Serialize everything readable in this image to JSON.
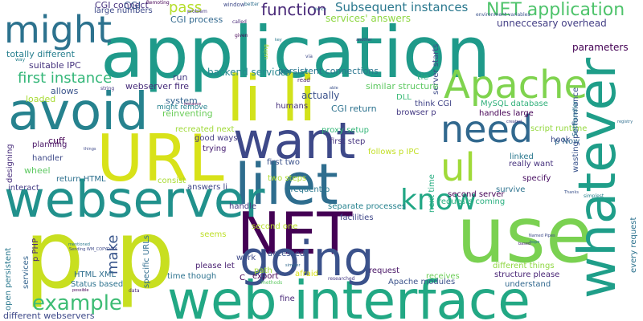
{
  "words": [
    {
      "text": "p p",
      "color": "#c8df20"
    },
    {
      "text": "application",
      "color": "#1f9a8a"
    },
    {
      "text": "web interface",
      "color": "#22a884"
    },
    {
      "text": "use",
      "color": "#7ad151"
    },
    {
      "text": "lilet",
      "color": "#2e6d8e"
    },
    {
      "text": "NET",
      "color": "#440154"
    },
    {
      "text": "going",
      "color": "#3b528b"
    },
    {
      "text": "li li",
      "color": "#d2e21b"
    },
    {
      "text": "avoid",
      "color": "#26828e"
    },
    {
      "text": "URL",
      "color": "#d8e219"
    },
    {
      "text": "want",
      "color": "#3e4989"
    },
    {
      "text": "webserver",
      "color": "#21918c"
    },
    {
      "text": "whatever",
      "color": "#1f9e89"
    },
    {
      "text": "Apache",
      "color": "#7fd34e"
    },
    {
      "text": "need",
      "color": "#31688e"
    },
    {
      "text": "ul",
      "color": "#a0da39"
    },
    {
      "text": "might",
      "color": "#2c728e"
    },
    {
      "text": "know",
      "color": "#22a785"
    },
    {
      "text": "example",
      "color": "#3dbc74"
    },
    {
      "text": "NET application",
      "color": "#4ec36b"
    },
    {
      "text": "function",
      "color": "#482878"
    },
    {
      "text": "Subsequent instances",
      "color": "#2a788e"
    },
    {
      "text": "pass",
      "color": "#b5de2b"
    },
    {
      "text": "first instance",
      "color": "#35b779"
    },
    {
      "text": "backend services",
      "color": "#24868e"
    },
    {
      "text": "make",
      "color": "#39568c"
    },
    {
      "text": "server starts",
      "color": "#3e4a89"
    },
    {
      "text": "parameters",
      "color": "#440154"
    },
    {
      "text": "unneccesary overhead",
      "color": "#433e85"
    },
    {
      "text": "CGI connect",
      "color": "#46327e"
    },
    {
      "text": "CGI process",
      "color": "#31688e"
    },
    {
      "text": "services' answers",
      "color": "#8fd744"
    },
    {
      "text": "totally different",
      "color": "#277f8e"
    },
    {
      "text": "suitable IPC",
      "color": "#46337e"
    },
    {
      "text": "persistent connections",
      "color": "#2a768e"
    },
    {
      "text": "run",
      "color": "#443a83"
    },
    {
      "text": "webserver fire",
      "color": "#472c7a"
    },
    {
      "text": "similar structure",
      "color": "#5ec962"
    },
    {
      "text": "tie",
      "color": "#29af7f"
    },
    {
      "text": "actually",
      "color": "#3b528b"
    },
    {
      "text": "CGI return",
      "color": "#2c728e"
    },
    {
      "text": "system",
      "color": "#32648e"
    },
    {
      "text": "reinventing",
      "color": "#6ccd5a"
    },
    {
      "text": "recreated next",
      "color": "#a0da39"
    },
    {
      "text": "might remove",
      "color": "#26828e"
    },
    {
      "text": "allows",
      "color": "#3a538b"
    },
    {
      "text": "loaded",
      "color": "#a8db34"
    },
    {
      "text": "cuff",
      "color": "#440154"
    },
    {
      "text": "planning",
      "color": "#471365"
    },
    {
      "text": "handler",
      "color": "#3e4a89"
    },
    {
      "text": "wheel",
      "color": "#5ec962"
    },
    {
      "text": "designing",
      "color": "#472d7b"
    },
    {
      "text": "good ways",
      "color": "#443a83"
    },
    {
      "text": "trying",
      "color": "#482173"
    },
    {
      "text": "return HTML",
      "color": "#2d708e"
    },
    {
      "text": "interact",
      "color": "#443b84"
    },
    {
      "text": "consist",
      "color": "#aadc32"
    },
    {
      "text": "answers li",
      "color": "#404688"
    },
    {
      "text": "proxy setup",
      "color": "#35b779"
    },
    {
      "text": "first step",
      "color": "#463480"
    },
    {
      "text": "follows p IPC",
      "color": "#c2df23"
    },
    {
      "text": "first two",
      "color": "#3b528b"
    },
    {
      "text": "two steps",
      "color": "#b0dd2f"
    },
    {
      "text": "frequent p",
      "color": "#2a788e"
    },
    {
      "text": "humans",
      "color": "#46307e"
    },
    {
      "text": "DLL",
      "color": "#3aba76"
    },
    {
      "text": "think CGI",
      "color": "#414487"
    },
    {
      "text": "MySQL database",
      "color": "#30b07a"
    },
    {
      "text": "browser p",
      "color": "#443983"
    },
    {
      "text": "handles large",
      "color": "#440154"
    },
    {
      "text": "script runtime",
      "color": "#95d840"
    },
    {
      "text": "hook",
      "color": "#3e4a89"
    },
    {
      "text": "p Now",
      "color": "#31688e"
    },
    {
      "text": "wasting performance",
      "color": "#3a548c"
    },
    {
      "text": "really want",
      "color": "#46327e"
    },
    {
      "text": "linked",
      "color": "#2a788e"
    },
    {
      "text": "specify",
      "color": "#470e61"
    },
    {
      "text": "survive",
      "color": "#2c728e"
    },
    {
      "text": "requests coming",
      "color": "#29af7f"
    },
    {
      "text": "second server",
      "color": "#440154"
    },
    {
      "text": "next time",
      "color": "#27ad81"
    },
    {
      "text": "separate processes",
      "color": "#26828e"
    },
    {
      "text": "facilities",
      "color": "#3f4788"
    },
    {
      "text": "second one",
      "color": "#b8de29"
    },
    {
      "text": "seems",
      "color": "#bddf26"
    },
    {
      "text": "accessed",
      "color": "#3b528b"
    },
    {
      "text": "work",
      "color": "#3e4a89"
    },
    {
      "text": "handle",
      "color": "#443a83"
    },
    {
      "text": "export",
      "color": "#440154"
    },
    {
      "text": "please let",
      "color": "#481f70"
    },
    {
      "text": "time though",
      "color": "#2c728e"
    },
    {
      "text": "C",
      "color": "#440154"
    },
    {
      "text": "path",
      "color": "#a5db36"
    },
    {
      "text": "afraid",
      "color": "#d8e219"
    },
    {
      "text": "request",
      "color": "#471365"
    },
    {
      "text": "receives",
      "color": "#6ece58"
    },
    {
      "text": "structure please",
      "color": "#482475"
    },
    {
      "text": "different things",
      "color": "#90d743"
    },
    {
      "text": "understand",
      "color": "#31688e"
    },
    {
      "text": "Apache modules",
      "color": "#3b528b"
    },
    {
      "text": "fine",
      "color": "#482878"
    },
    {
      "text": "Status based",
      "color": "#2c728e"
    },
    {
      "text": "HTML XML",
      "color": "#2e6e8e"
    },
    {
      "text": "services",
      "color": "#33638d"
    },
    {
      "text": "p PHP",
      "color": "#482878"
    },
    {
      "text": "specific URLs",
      "color": "#2f6c8e"
    },
    {
      "text": "open persistent",
      "color": "#2a788e"
    },
    {
      "text": "different webservers",
      "color": "#3e4989"
    },
    {
      "text": "every request",
      "color": "#2c728e"
    },
    {
      "text": "large numbers",
      "color": "#3e4a89"
    },
    {
      "text": "CGI",
      "color": "#39568c"
    },
    {
      "text": "Remoting",
      "color": "#440154"
    },
    {
      "text": "window",
      "color": "#3e4a89"
    },
    {
      "text": "better",
      "color": "#2e6e8e"
    },
    {
      "text": "environment variables",
      "color": "#3b528b"
    },
    {
      "text": "called",
      "color": "#482878"
    },
    {
      "text": "problem",
      "color": "#443983"
    },
    {
      "text": "Hence",
      "color": "#31688e"
    },
    {
      "text": "given",
      "color": "#440154"
    },
    {
      "text": "key",
      "color": "#2a788e"
    },
    {
      "text": "another",
      "color": "#46327e"
    },
    {
      "text": "via",
      "color": "#3e4989"
    },
    {
      "text": "using",
      "color": "#b5de2b"
    },
    {
      "text": "way",
      "color": "#26828e"
    },
    {
      "text": "string",
      "color": "#443a83"
    },
    {
      "text": "read",
      "color": "#481f70"
    },
    {
      "text": "able",
      "color": "#3b528b"
    },
    {
      "text": "mentioned",
      "color": "#2a788e"
    },
    {
      "text": "Sending WM_COPYDATA",
      "color": "#3e4989"
    },
    {
      "text": "possible",
      "color": "#440154"
    },
    {
      "text": "data",
      "color": "#482878"
    },
    {
      "text": "methods",
      "color": "#5ec962"
    },
    {
      "text": "simpler",
      "color": "#31688e"
    },
    {
      "text": "researched",
      "color": "#443983"
    },
    {
      "text": "Named Pipes",
      "color": "#3e4a89"
    },
    {
      "text": "hope",
      "color": "#2c728e"
    },
    {
      "text": "based",
      "color": "#482475"
    },
    {
      "text": "SetHandler",
      "color": "#2a788e"
    },
    {
      "text": "simplest",
      "color": "#26828e"
    },
    {
      "text": "created",
      "color": "#443a83"
    },
    {
      "text": "Thanks",
      "color": "#3b528b"
    },
    {
      "text": "registry",
      "color": "#2e6e8e"
    },
    {
      "text": "things",
      "color": "#3e4989"
    },
    {
      "text": "instance",
      "color": "#440154"
    }
  ]
}
